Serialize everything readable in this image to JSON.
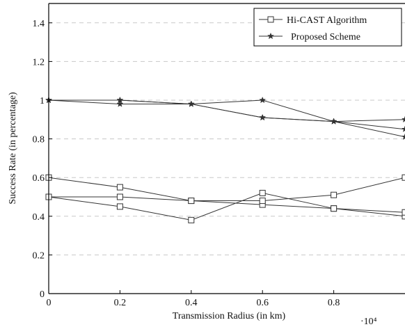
{
  "chart_data": {
    "type": "line",
    "xlabel": "Transmission Radius (in km)",
    "ylabel": "Success Rate (in percentage)",
    "x_multiplier_label": "·10⁴",
    "xlim": [
      0,
      1
    ],
    "ylim": [
      0,
      1.5
    ],
    "xticks": [
      "0",
      "0.2",
      "0.4",
      "0.6",
      "0.8"
    ],
    "yticks": [
      "0",
      "0.2",
      "0.4",
      "0.6",
      "0.8",
      "1",
      "1.2",
      "1.4"
    ],
    "grid": "horizontal-dashed",
    "legend_position": "top-right",
    "x": [
      0,
      0.2,
      0.4,
      0.6,
      0.8,
      1.0
    ],
    "series": [
      {
        "name": "Hi-CAST Algorithm",
        "marker": "square",
        "values": [
          0.5,
          0.45,
          0.38,
          0.52,
          0.44,
          0.4
        ]
      },
      {
        "name": "",
        "marker": "square",
        "values": [
          0.6,
          0.55,
          0.48,
          0.46,
          0.44,
          0.42
        ]
      },
      {
        "name": "",
        "marker": "square",
        "values": [
          0.5,
          0.5,
          0.48,
          0.48,
          0.51,
          0.6
        ]
      },
      {
        "name": "Proposed Scheme",
        "marker": "star",
        "values": [
          1.0,
          1.0,
          0.98,
          0.91,
          0.89,
          0.85
        ]
      },
      {
        "name": "",
        "marker": "star",
        "values": [
          1.0,
          0.98,
          0.98,
          1.0,
          0.89,
          0.81
        ]
      },
      {
        "name": "",
        "marker": "star",
        "values": [
          1.0,
          1.0,
          0.98,
          0.91,
          0.89,
          0.9
        ]
      }
    ],
    "colors": {
      "line": "#333333",
      "grid": "#c8c8c8",
      "axis": "#000000"
    }
  }
}
